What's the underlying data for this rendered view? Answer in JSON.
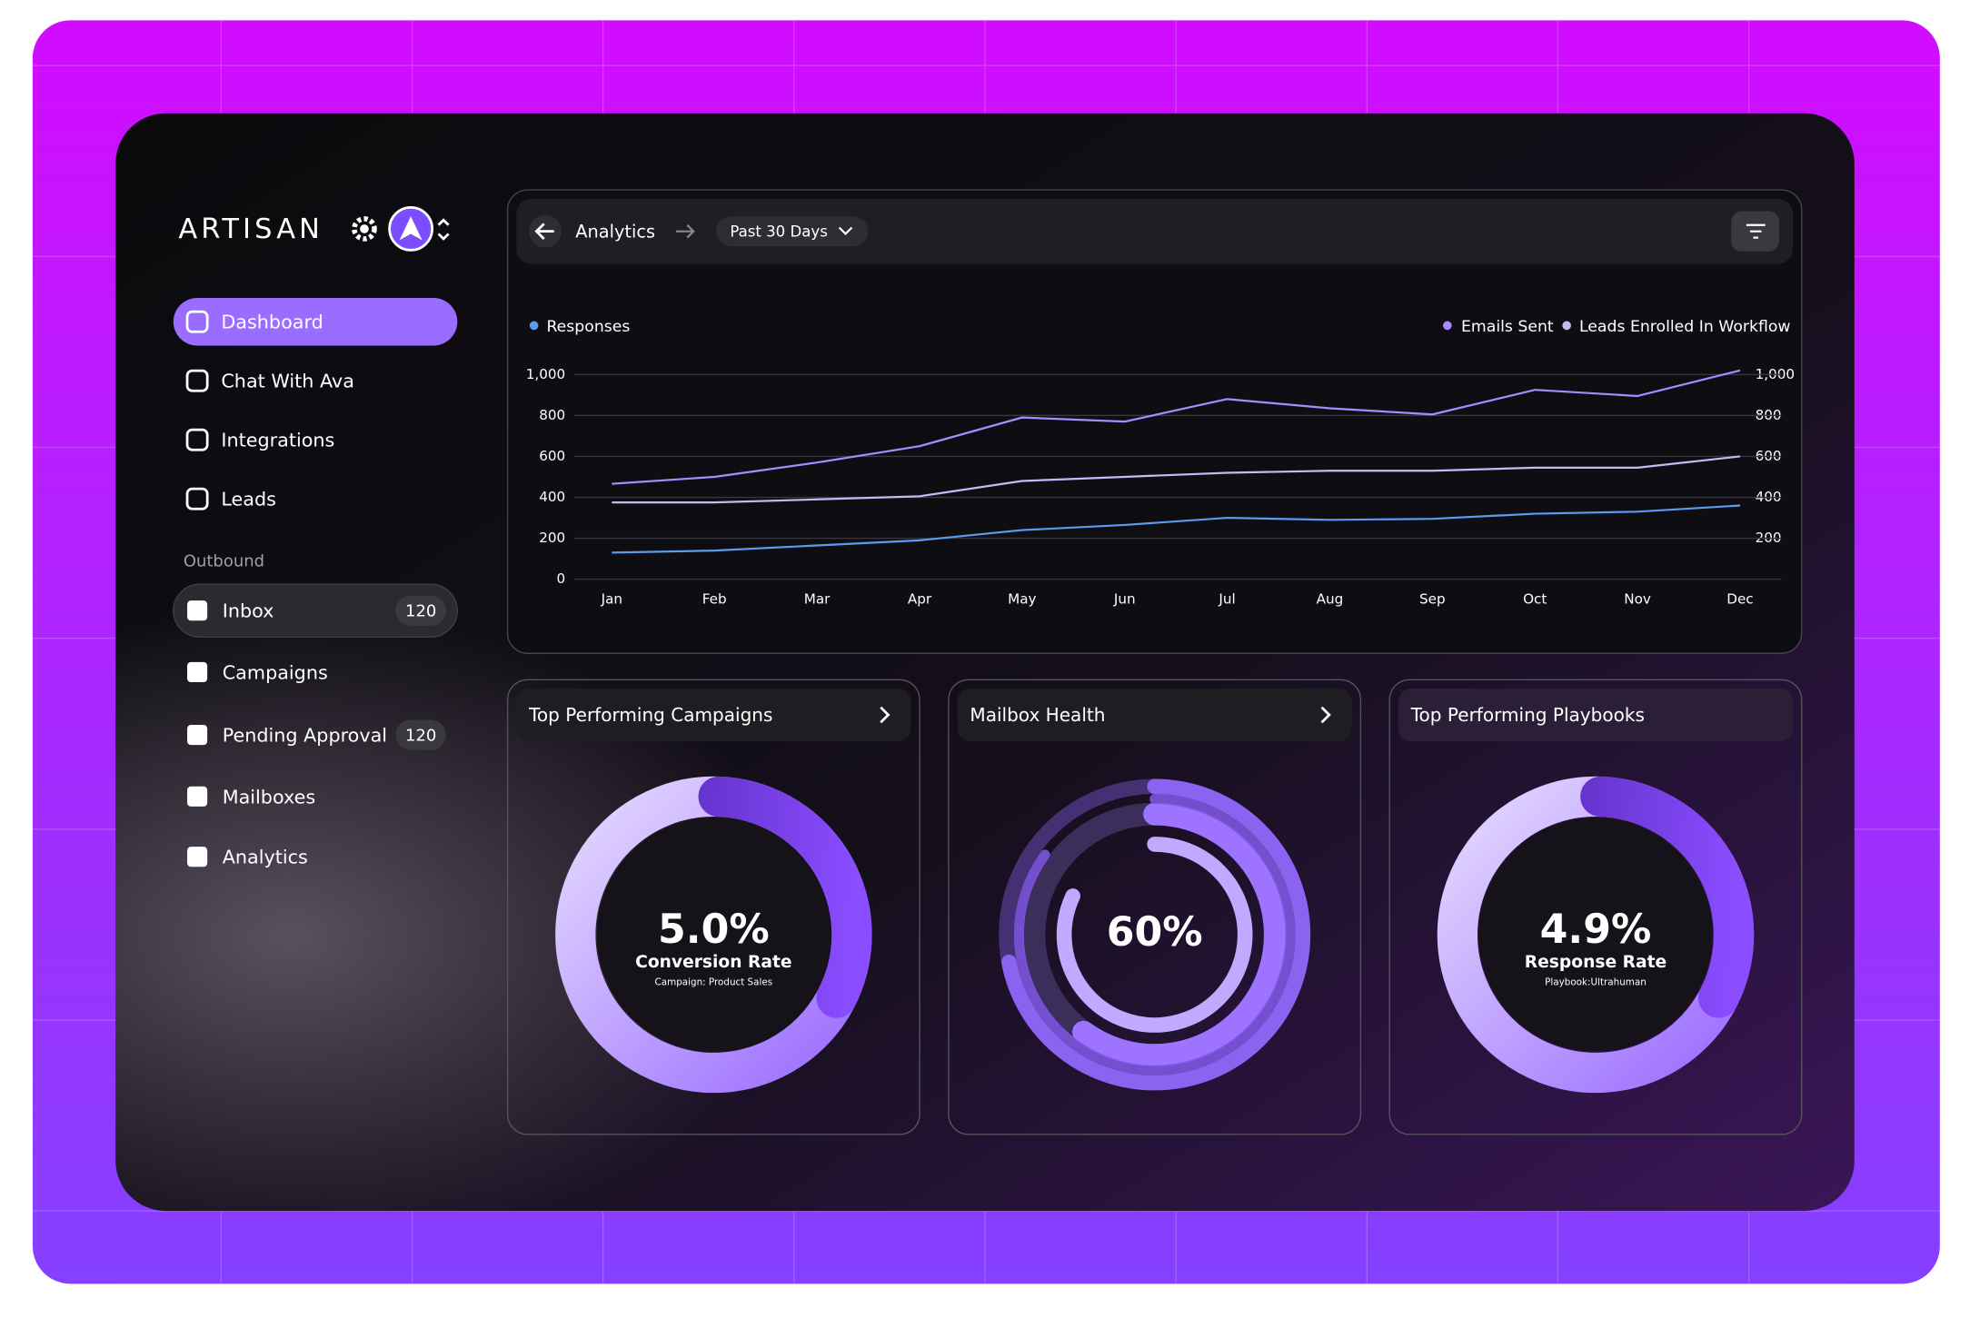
{
  "sidebar": {
    "logo": "ARTISAN",
    "nav": [
      "Dashboard",
      "Chat With Ava",
      "Integrations",
      "Leads"
    ],
    "section": "Outbound",
    "outbound": [
      {
        "label": "Inbox",
        "badge": "120"
      },
      {
        "label": "Campaigns"
      },
      {
        "label": "Pending Approval",
        "badge": "120"
      },
      {
        "label": "Mailboxes"
      },
      {
        "label": "Analytics"
      }
    ]
  },
  "header": {
    "title": "Analytics",
    "range": "Past 30 Days"
  },
  "chart_data": {
    "type": "line",
    "categories": [
      "Jan",
      "Feb",
      "Mar",
      "Apr",
      "May",
      "Jun",
      "Jul",
      "Aug",
      "Sep",
      "Oct",
      "Nov",
      "Dec"
    ],
    "series": [
      {
        "name": "Responses",
        "color": "#5b9cf0",
        "values": [
          130,
          140,
          165,
          190,
          240,
          265,
          300,
          290,
          295,
          320,
          330,
          360
        ]
      },
      {
        "name": "Emails Sent",
        "color": "#a98bff",
        "values": [
          466,
          500,
          570,
          650,
          790,
          770,
          880,
          835,
          805,
          925,
          895,
          1020
        ]
      },
      {
        "name": "Leads Enrolled In Workflow",
        "color": "#c9b8f5",
        "values": [
          375,
          375,
          390,
          405,
          480,
          500,
          520,
          530,
          530,
          545,
          545,
          600
        ]
      }
    ],
    "ylim": [
      0,
      1000
    ],
    "yticks": [
      0,
      200,
      400,
      600,
      800,
      {
        "value": 1000,
        "label": "1,000"
      }
    ],
    "grid": true
  },
  "cards": [
    {
      "title": "Top Performing Campaigns",
      "value": "5.0%",
      "label": "Conversion Rate",
      "sub": "Campaign: Product Sales"
    },
    {
      "title": "Mailbox Health",
      "value": "60%"
    },
    {
      "title": "Top Performing Playbooks",
      "value": "4.9%",
      "label": "Response Rate",
      "sub": "Playbook:Ultrahuman"
    }
  ]
}
